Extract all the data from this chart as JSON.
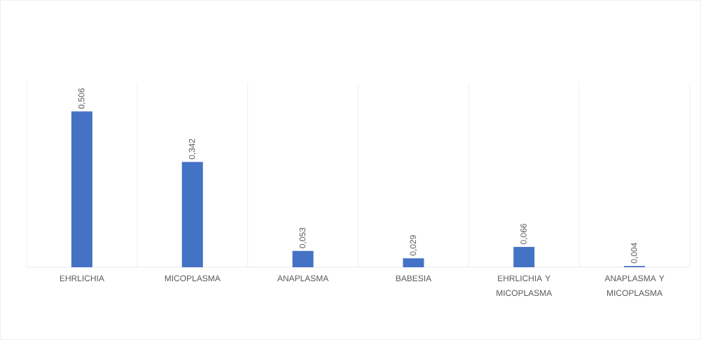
{
  "chart_data": {
    "type": "bar",
    "categories": [
      "EHRLICHIA",
      "MICOPLASMA",
      "ANAPLASMA",
      "BABESIA",
      "EHRLICHIA Y MICOPLASMA",
      "ANAPLASMA Y MICOPLASMA"
    ],
    "values": [
      0.506,
      0.342,
      0.053,
      0.029,
      0.066,
      0.004
    ],
    "value_labels": [
      "0,506",
      "0,342",
      "0,053",
      "0,029",
      "0,066",
      "0,004"
    ],
    "color": "#4472c4",
    "ylim": [
      0,
      0.6
    ],
    "grid": "x"
  }
}
